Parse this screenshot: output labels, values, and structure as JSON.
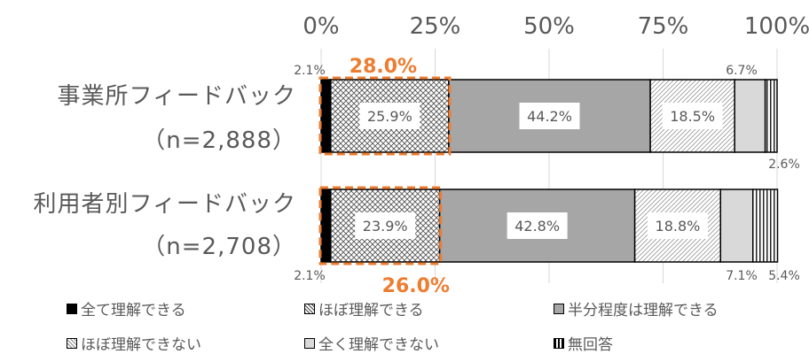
{
  "colors": {
    "text": "#595959",
    "accent": "#ED7D31",
    "grid": "#D9D9D9"
  },
  "chart_data": {
    "type": "bar",
    "orientation": "horizontal",
    "stacked": "percent",
    "xlim": [
      0,
      100
    ],
    "x_ticks": [
      "0%",
      "25%",
      "50%",
      "75%",
      "100%"
    ],
    "categories": [
      {
        "line1": "事業所フィードバック",
        "line2": "（n=2,888）"
      },
      {
        "line1": "利用者別フィードバック",
        "line2": "（n=2,708）"
      }
    ],
    "series": [
      {
        "name": "全て理解できる",
        "pattern": "solid-black",
        "values": [
          2.1,
          2.1
        ],
        "labels": [
          "2.1%",
          "2.1%"
        ]
      },
      {
        "name": "ほぼ理解できる",
        "pattern": "crosshatch",
        "values": [
          25.9,
          23.9
        ],
        "labels": [
          "25.9%",
          "23.9%"
        ]
      },
      {
        "name": "半分程度は理解できる",
        "pattern": "solid-gray",
        "values": [
          44.2,
          42.8
        ],
        "labels": [
          "44.2%",
          "42.8%"
        ]
      },
      {
        "name": "ほぼ理解できない",
        "pattern": "diagonal",
        "values": [
          18.5,
          18.8
        ],
        "labels": [
          "18.5%",
          "18.8%"
        ]
      },
      {
        "name": "全く理解できない",
        "pattern": "light-gray",
        "values": [
          6.7,
          7.1
        ],
        "labels": [
          "6.7%",
          "7.1%"
        ]
      },
      {
        "name": "無回答",
        "pattern": "vertical-stripes",
        "values": [
          2.6,
          5.4
        ],
        "labels": [
          "2.6%",
          "5.4%"
        ]
      }
    ],
    "highlight": {
      "series": [
        "全て理解できる",
        "ほぼ理解できる"
      ],
      "labels": [
        "28.0%",
        "26.0%"
      ]
    },
    "grid": true,
    "legend_position": "bottom"
  }
}
